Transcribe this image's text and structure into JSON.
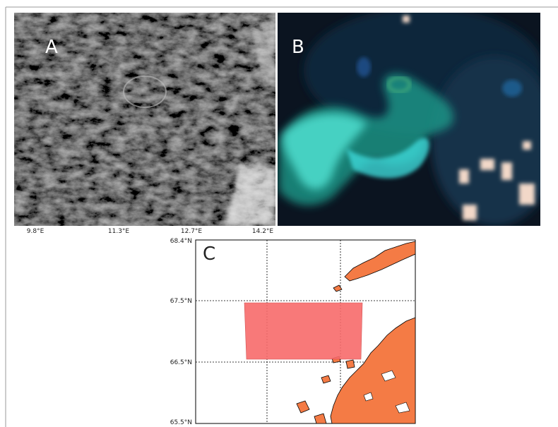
{
  "panels": {
    "a": {
      "label": "A"
    },
    "b": {
      "label": "B"
    },
    "c": {
      "label": "C"
    }
  },
  "x_axis_labels": [
    "9.8°E",
    "11.3°E",
    "12.7°E",
    "14.2°E"
  ],
  "map_y_axis_labels": [
    "68.4°N",
    "67.5°N",
    "66.5°N",
    "65.5°N"
  ]
}
